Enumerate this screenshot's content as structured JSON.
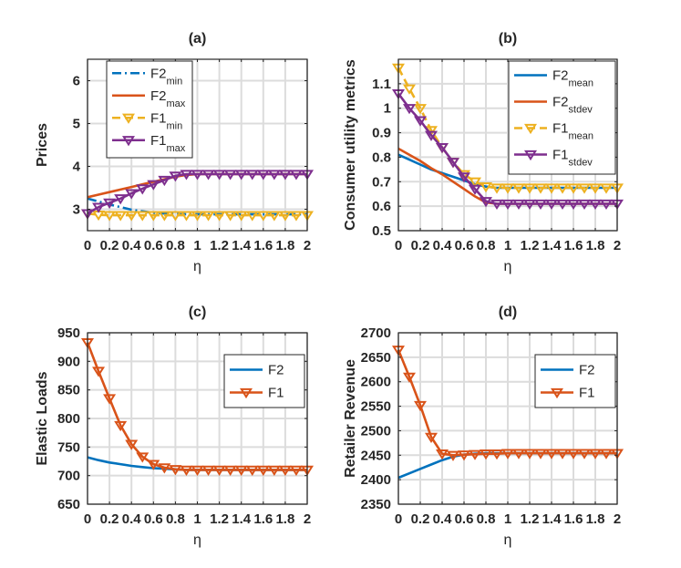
{
  "colors": {
    "blue": "#0072BD",
    "orange": "#D95319",
    "yellow": "#EDB120",
    "purple": "#7E2F8E",
    "grid": "#dcdcdc",
    "axis": "#262626"
  },
  "chart_data": [
    {
      "type": "line",
      "title": "(a)",
      "xlabel": "η",
      "ylabel": "Prices",
      "xlim": [
        0,
        2
      ],
      "ylim": [
        2.5,
        6.5
      ],
      "grid": true,
      "xticks": [
        0,
        0.2,
        0.4,
        0.6,
        0.8,
        1,
        1.2,
        1.4,
        1.6,
        1.8,
        2
      ],
      "xtick_labels": [
        "0",
        "0.2",
        "0.4",
        "0.6",
        "0.8",
        "1",
        "1.2",
        "1.4",
        "1.6",
        "1.8",
        "2"
      ],
      "yticks": [
        3,
        4,
        5,
        6
      ],
      "ytick_labels": [
        "3",
        "4",
        "5",
        "6"
      ],
      "legend_position": "top-left",
      "x": [
        0,
        0.1,
        0.2,
        0.3,
        0.4,
        0.5,
        0.6,
        0.7,
        0.8,
        0.9,
        1.0,
        1.1,
        1.2,
        1.3,
        1.4,
        1.5,
        1.6,
        1.7,
        1.8,
        1.9,
        2.0
      ],
      "series": [
        {
          "name": "F2",
          "sub": "min",
          "color": "#0072BD",
          "style": "dashdot",
          "marker": "none",
          "values": [
            3.25,
            3.18,
            3.11,
            3.05,
            2.99,
            2.95,
            2.92,
            2.9,
            2.89,
            2.88,
            2.88,
            2.88,
            2.88,
            2.88,
            2.88,
            2.88,
            2.88,
            2.88,
            2.88,
            2.88,
            2.88
          ]
        },
        {
          "name": "F2",
          "sub": "max",
          "color": "#D95319",
          "style": "solid",
          "marker": "none",
          "values": [
            3.28,
            3.34,
            3.4,
            3.46,
            3.52,
            3.58,
            3.64,
            3.7,
            3.76,
            3.8,
            3.82,
            3.82,
            3.82,
            3.82,
            3.82,
            3.82,
            3.82,
            3.82,
            3.82,
            3.82,
            3.82
          ]
        },
        {
          "name": "F1",
          "sub": "min",
          "color": "#EDB120",
          "style": "dashed",
          "marker": "triangle-down",
          "values": [
            2.9,
            2.87,
            2.86,
            2.86,
            2.86,
            2.86,
            2.86,
            2.86,
            2.86,
            2.86,
            2.86,
            2.86,
            2.86,
            2.86,
            2.86,
            2.86,
            2.86,
            2.86,
            2.86,
            2.86,
            2.86
          ]
        },
        {
          "name": "F1",
          "sub": "max",
          "color": "#7E2F8E",
          "style": "solid",
          "marker": "triangle-down",
          "values": [
            2.9,
            3.05,
            3.15,
            3.25,
            3.37,
            3.48,
            3.58,
            3.68,
            3.78,
            3.82,
            3.82,
            3.82,
            3.82,
            3.82,
            3.82,
            3.82,
            3.82,
            3.82,
            3.82,
            3.82,
            3.82
          ]
        }
      ]
    },
    {
      "type": "line",
      "title": "(b)",
      "xlabel": "η",
      "ylabel": "Consumer utility metrics",
      "xlim": [
        0,
        2
      ],
      "ylim": [
        0.5,
        1.2
      ],
      "grid": true,
      "xticks": [
        0,
        0.2,
        0.4,
        0.6,
        0.8,
        1,
        1.2,
        1.4,
        1.6,
        1.8,
        2
      ],
      "xtick_labels": [
        "0",
        "0.2",
        "0.4",
        "0.6",
        "0.8",
        "1",
        "1.2",
        "1.4",
        "1.6",
        "1.8",
        "2"
      ],
      "yticks": [
        0.5,
        0.6,
        0.7,
        0.8,
        0.9,
        1,
        1.1
      ],
      "ytick_labels": [
        "0.5",
        "0.6",
        "0.7",
        "0.8",
        "0.9",
        "1",
        "1.1"
      ],
      "legend_position": "top-right",
      "x": [
        0,
        0.1,
        0.2,
        0.3,
        0.4,
        0.5,
        0.6,
        0.7,
        0.8,
        0.9,
        1.0,
        1.1,
        1.2,
        1.3,
        1.4,
        1.5,
        1.6,
        1.7,
        1.8,
        1.9,
        2.0
      ],
      "series": [
        {
          "name": "F2",
          "sub": "mean",
          "color": "#0072BD",
          "style": "solid",
          "marker": "none",
          "values": [
            0.81,
            0.79,
            0.77,
            0.75,
            0.735,
            0.72,
            0.705,
            0.69,
            0.68,
            0.675,
            0.675,
            0.675,
            0.675,
            0.675,
            0.675,
            0.675,
            0.675,
            0.675,
            0.675,
            0.675,
            0.675
          ]
        },
        {
          "name": "F2",
          "sub": "stdev",
          "color": "#D95319",
          "style": "solid",
          "marker": "none",
          "values": [
            0.835,
            0.81,
            0.785,
            0.755,
            0.73,
            0.7,
            0.67,
            0.64,
            0.615,
            0.61,
            0.61,
            0.61,
            0.61,
            0.61,
            0.61,
            0.61,
            0.61,
            0.61,
            0.61,
            0.61,
            0.61
          ]
        },
        {
          "name": "F1",
          "sub": "mean",
          "color": "#EDB120",
          "style": "dashed",
          "marker": "triangle-down",
          "values": [
            1.165,
            1.08,
            1.0,
            0.91,
            0.84,
            0.78,
            0.73,
            0.7,
            0.68,
            0.675,
            0.675,
            0.675,
            0.675,
            0.675,
            0.675,
            0.675,
            0.675,
            0.675,
            0.675,
            0.675,
            0.675
          ]
        },
        {
          "name": "F1",
          "sub": "stdev",
          "color": "#7E2F8E",
          "style": "solid",
          "marker": "triangle-down",
          "values": [
            1.06,
            1.0,
            0.95,
            0.89,
            0.84,
            0.78,
            0.72,
            0.67,
            0.62,
            0.61,
            0.61,
            0.61,
            0.61,
            0.61,
            0.61,
            0.61,
            0.61,
            0.61,
            0.61,
            0.61,
            0.61
          ]
        }
      ]
    },
    {
      "type": "line",
      "title": "(c)",
      "xlabel": "η",
      "ylabel": "Elastic Loads",
      "xlim": [
        0,
        2
      ],
      "ylim": [
        650,
        950
      ],
      "grid": true,
      "xticks": [
        0,
        0.2,
        0.4,
        0.6,
        0.8,
        1,
        1.2,
        1.4,
        1.6,
        1.8,
        2
      ],
      "xtick_labels": [
        "0",
        "0.2",
        "0.4",
        "0.6",
        "0.8",
        "1",
        "1.2",
        "1.4",
        "1.6",
        "1.8",
        "2"
      ],
      "yticks": [
        650,
        700,
        750,
        800,
        850,
        900,
        950
      ],
      "ytick_labels": [
        "650",
        "700",
        "750",
        "800",
        "850",
        "900",
        "950"
      ],
      "legend_position": "top-right",
      "x": [
        0,
        0.1,
        0.2,
        0.3,
        0.4,
        0.5,
        0.6,
        0.7,
        0.8,
        0.9,
        1.0,
        1.1,
        1.2,
        1.3,
        1.4,
        1.5,
        1.6,
        1.7,
        1.8,
        1.9,
        2.0
      ],
      "series": [
        {
          "name": "F2",
          "sub": "",
          "color": "#0072BD",
          "style": "solid",
          "marker": "none",
          "values": [
            732,
            727,
            723,
            720,
            717,
            715,
            713,
            712,
            711,
            710,
            710,
            710,
            710,
            710,
            710,
            710,
            710,
            710,
            710,
            710,
            710
          ]
        },
        {
          "name": "F1",
          "sub": "",
          "color": "#D95319",
          "style": "solid",
          "marker": "triangle-down",
          "values": [
            933,
            883,
            835,
            788,
            755,
            733,
            720,
            714,
            711,
            710,
            710,
            710,
            710,
            710,
            710,
            710,
            710,
            710,
            710,
            710,
            710
          ]
        }
      ]
    },
    {
      "type": "line",
      "title": "(d)",
      "xlabel": "η",
      "ylabel": "Retailer Revenue",
      "xlim": [
        0,
        2
      ],
      "ylim": [
        2350,
        2700
      ],
      "grid": true,
      "xticks": [
        0,
        0.2,
        0.4,
        0.6,
        0.8,
        1,
        1.2,
        1.4,
        1.6,
        1.8,
        2
      ],
      "xtick_labels": [
        "0",
        "0.2",
        "0.4",
        "0.6",
        "0.8",
        "1",
        "1.2",
        "1.4",
        "1.6",
        "1.8",
        "2"
      ],
      "yticks": [
        2350,
        2400,
        2450,
        2500,
        2550,
        2600,
        2650,
        2700
      ],
      "ytick_labels": [
        "2350",
        "2400",
        "2450",
        "2500",
        "2550",
        "2600",
        "2650",
        "2700"
      ],
      "legend_position": "top-right",
      "x": [
        0,
        0.1,
        0.2,
        0.3,
        0.4,
        0.5,
        0.6,
        0.7,
        0.8,
        0.9,
        1.0,
        1.1,
        1.2,
        1.3,
        1.4,
        1.5,
        1.6,
        1.7,
        1.8,
        1.9,
        2.0
      ],
      "series": [
        {
          "name": "F2",
          "sub": "",
          "color": "#0072BD",
          "style": "solid",
          "marker": "none",
          "values": [
            2404,
            2413,
            2422,
            2431,
            2440,
            2447,
            2451,
            2453,
            2454,
            2454,
            2454,
            2454,
            2454,
            2454,
            2454,
            2454,
            2454,
            2454,
            2454,
            2454,
            2454
          ]
        },
        {
          "name": "F1",
          "sub": "",
          "color": "#D95319",
          "style": "solid",
          "marker": "triangle-down",
          "values": [
            2665,
            2610,
            2552,
            2487,
            2453,
            2450,
            2451,
            2452,
            2453,
            2453,
            2454,
            2454,
            2454,
            2454,
            2454,
            2454,
            2454,
            2454,
            2454,
            2454,
            2454
          ]
        }
      ]
    }
  ]
}
